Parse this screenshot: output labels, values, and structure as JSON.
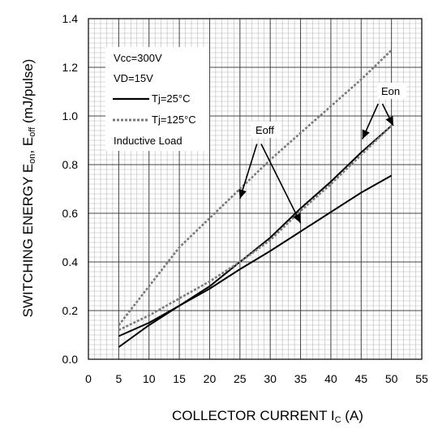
{
  "chart_data": {
    "type": "line",
    "xlabel_main": "COLLECTOR CURRENT I",
    "xlabel_sub": "C",
    "xlabel_tail": " (A)",
    "ylabel_a": "SWITCHING ENERGY E",
    "ylabel_a_sub": "on",
    "ylabel_b": ", E",
    "ylabel_b_sub": "off",
    "ylabel_tail": " (mJ/pulse)",
    "xlim": [
      0,
      55
    ],
    "ylim": [
      0,
      1.4
    ],
    "xticks": [
      "0",
      "5",
      "10",
      "15",
      "20",
      "25",
      "30",
      "35",
      "40",
      "45",
      "50",
      "55"
    ],
    "yticks": [
      "0.0",
      "0.2",
      "0.4",
      "0.6",
      "0.8",
      "1.0",
      "1.2",
      "1.4"
    ],
    "grid": true,
    "legend": {
      "position": "top-left",
      "lines": [
        "Vcc=300V",
        "VD=15V",
        "Tj=25°C",
        "Tj=125°C",
        "Inductive Load"
      ]
    },
    "annotations": {
      "eoff": "Eoff",
      "eon": "Eon"
    },
    "series": [
      {
        "label": "Eon Tj=25°C",
        "style": "solid",
        "x": [
          5,
          10,
          15,
          20,
          25,
          30,
          35,
          40,
          45,
          50
        ],
        "y": [
          0.05,
          0.14,
          0.22,
          0.3,
          0.4,
          0.5,
          0.62,
          0.73,
          0.85,
          0.96
        ]
      },
      {
        "label": "Eoff Tj=25°C",
        "style": "solid",
        "x": [
          5,
          10,
          15,
          20,
          25,
          30,
          35,
          40,
          45,
          50
        ],
        "y": [
          0.095,
          0.15,
          0.22,
          0.29,
          0.37,
          0.445,
          0.525,
          0.605,
          0.685,
          0.755
        ]
      },
      {
        "label": "Eon Tj=125°C",
        "style": "dotted",
        "x": [
          5,
          10,
          15,
          20,
          25,
          30,
          35,
          40,
          45,
          50
        ],
        "y": [
          0.12,
          0.18,
          0.25,
          0.32,
          0.4,
          0.49,
          0.61,
          0.72,
          0.84,
          0.96
        ]
      },
      {
        "label": "Eoff Tj=125°C",
        "style": "dotted",
        "x": [
          5,
          10,
          15,
          20,
          25,
          30,
          35,
          40,
          45,
          50
        ],
        "y": [
          0.14,
          0.3,
          0.46,
          0.58,
          0.7,
          0.82,
          0.93,
          1.04,
          1.15,
          1.27
        ]
      }
    ]
  }
}
